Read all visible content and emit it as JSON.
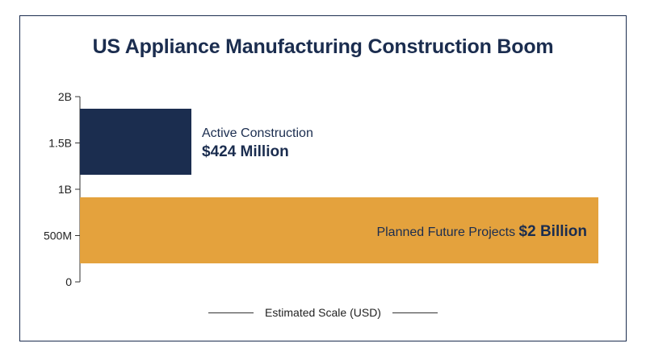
{
  "chart_data": {
    "type": "bar",
    "title": "US Appliance Manufacturing Construction Boom",
    "xlabel": "Estimated Scale (USD)",
    "ylabel": "",
    "ylim": [
      0,
      2000000000
    ],
    "yticks": [
      {
        "value": 0,
        "label": "0"
      },
      {
        "value": 500000000,
        "label": "500M"
      },
      {
        "value": 1000000000,
        "label": "1B"
      },
      {
        "value": 1500000000,
        "label": "1.5B"
      },
      {
        "value": 2000000000,
        "label": "2B"
      }
    ],
    "bars": [
      {
        "category": "Active Construction",
        "value_label": "$424 Million",
        "value": 424000000,
        "color": "#1b2d4f",
        "label_position": "outside"
      },
      {
        "category": "Planned Future Projects",
        "value_label": "$2 Billion",
        "value": 2000000000,
        "color": "#e4a23d",
        "label_position": "inside"
      }
    ]
  }
}
